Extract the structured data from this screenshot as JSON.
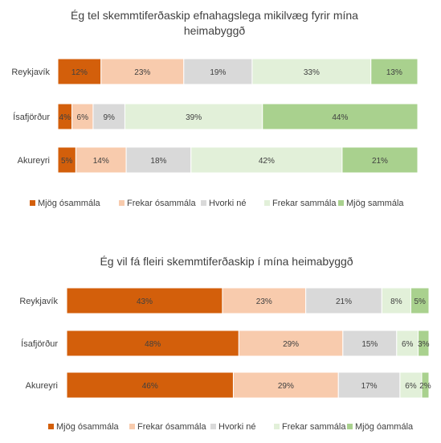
{
  "colors": [
    "#d35f0b",
    "#f8cbad",
    "#d9d9d9",
    "#e2f0d9",
    "#a9d18e"
  ],
  "chart_data": [
    {
      "type": "bar",
      "orientation": "horizontal-stacked-100",
      "title_lines": [
        "Ég tel skemmtiferðaskip efnahagslega mikilvæg fyrir mína",
        "heimabyggð"
      ],
      "categories": [
        "Reykjavík",
        "Ísafjörður",
        "Akureyri"
      ],
      "legend_position": "bottom",
      "series": [
        {
          "name": "Mjög ósammála",
          "values": [
            12,
            4,
            5
          ]
        },
        {
          "name": "Frekar ósammála",
          "values": [
            23,
            6,
            14
          ]
        },
        {
          "name": "Hvorki né",
          "values": [
            19,
            9,
            18
          ]
        },
        {
          "name": "Frekar sammála",
          "values": [
            33,
            39,
            42
          ]
        },
        {
          "name": "Mjög sammála",
          "values": [
            13,
            44,
            21
          ]
        }
      ]
    },
    {
      "type": "bar",
      "orientation": "horizontal-stacked-100",
      "title_lines": [
        "Ég vil fá fleiri skemmtiferðaskip í mína heimabyggð"
      ],
      "categories": [
        "Reykjavík",
        "Ísafjörður",
        "Akureyri"
      ],
      "legend_position": "bottom",
      "series": [
        {
          "name": "Mjög ósammála",
          "values": [
            43,
            48,
            46
          ]
        },
        {
          "name": "Frekar ósammála",
          "values": [
            23,
            29,
            29
          ]
        },
        {
          "name": "Hvorki né",
          "values": [
            21,
            15,
            17
          ]
        },
        {
          "name": "Frekar sammála",
          "values": [
            8,
            6,
            6
          ]
        },
        {
          "name": "Mjög óammála",
          "values": [
            5,
            3,
            2
          ]
        }
      ]
    }
  ]
}
